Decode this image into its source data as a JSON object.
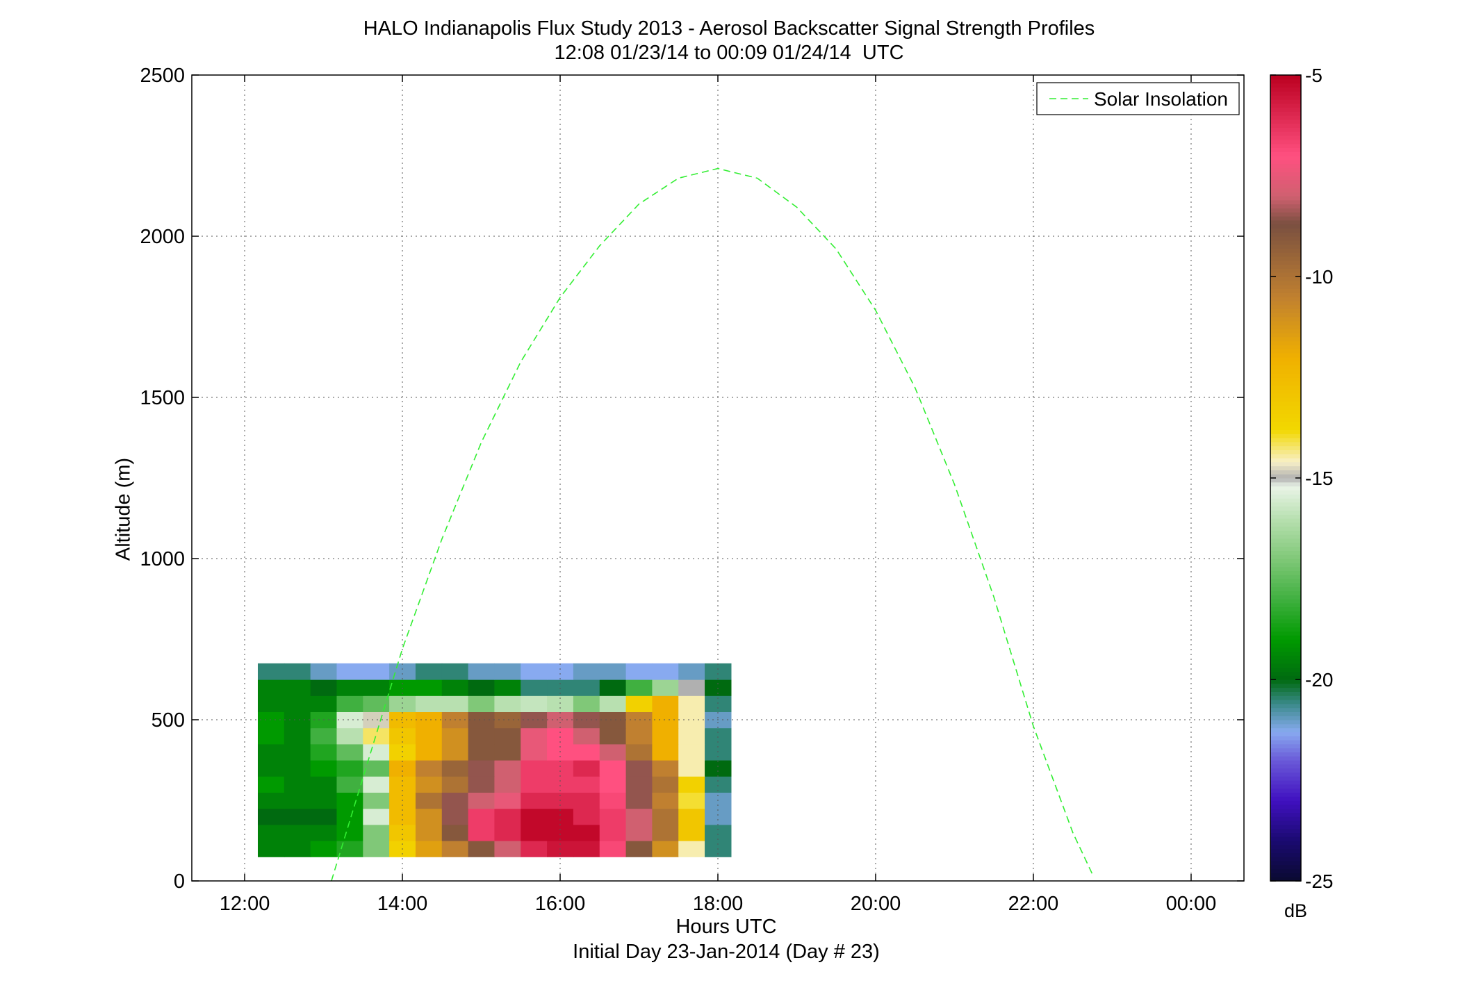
{
  "chart_data": {
    "type": "heatmap",
    "title": [
      "HALO Indianapolis Flux Study 2013 - Aerosol Backscatter Signal Strength Profiles",
      "12:08 01/23/14 to 00:09 01/24/14  UTC"
    ],
    "xlabel": "Hours UTC",
    "xlabel_sub": "Initial Day 23-Jan-2014 (Day # 23)",
    "ylabel": "Altitude (m)",
    "x_ticks": [
      12,
      14,
      16,
      18,
      20,
      22,
      24
    ],
    "x_tick_labels": [
      "12:00",
      "14:00",
      "16:00",
      "18:00",
      "20:00",
      "22:00",
      "00:00"
    ],
    "xlim": [
      11.33,
      24.67
    ],
    "y_ticks": [
      0,
      500,
      1000,
      1500,
      2000,
      2500
    ],
    "y_tick_labels": [
      "0",
      "500",
      "1000",
      "1500",
      "2000",
      "2500"
    ],
    "ylim": [
      0,
      2500
    ],
    "grid": true,
    "legend": {
      "position": "top-right",
      "entries": [
        {
          "name": "Solar Insolation",
          "style": "dashed",
          "color": "#33ee33"
        }
      ]
    },
    "colorbar": {
      "label": "dB",
      "range": [
        -25,
        -5
      ],
      "ticks": [
        -5,
        -10,
        -15,
        -20,
        -25
      ],
      "tick_labels": [
        "-5",
        "-10",
        "-15",
        "-20",
        "-25"
      ],
      "stops": [
        [
          -25,
          "#0a0a30"
        ],
        [
          -24,
          "#1a0a70"
        ],
        [
          -23,
          "#4010c0"
        ],
        [
          -22,
          "#6a5ad8"
        ],
        [
          -21.3,
          "#88aaf0"
        ],
        [
          -20.6,
          "#3a8a8a"
        ],
        [
          -20,
          "#006a10"
        ],
        [
          -19,
          "#009a00"
        ],
        [
          -18,
          "#40b040"
        ],
        [
          -17,
          "#80c878"
        ],
        [
          -16,
          "#b8e0b0"
        ],
        [
          -15.2,
          "#eaf4e8"
        ],
        [
          -15,
          "#b0b0b0"
        ],
        [
          -14.6,
          "#f8f0c8"
        ],
        [
          -13.8,
          "#f2d800"
        ],
        [
          -12,
          "#f0b000"
        ],
        [
          -10.5,
          "#c08030"
        ],
        [
          -8.7,
          "#7a5040"
        ],
        [
          -8,
          "#d06070"
        ],
        [
          -7,
          "#ff5080"
        ],
        [
          -5,
          "#bb0020"
        ]
      ]
    },
    "solar_insolation": {
      "x": [
        13.1,
        13.5,
        14.0,
        14.5,
        15.0,
        15.5,
        16.0,
        16.5,
        17.0,
        17.5,
        18.0,
        18.5,
        19.0,
        19.5,
        20.0,
        20.5,
        21.0,
        21.5,
        22.0,
        22.5,
        22.75
      ],
      "y": [
        0,
        320,
        720,
        1060,
        1360,
        1610,
        1810,
        1970,
        2100,
        2180,
        2210,
        2180,
        2090,
        1960,
        1770,
        1530,
        1230,
        880,
        480,
        150,
        20
      ]
    },
    "x_start": 12.167,
    "bin_hours": 0.3333,
    "alt_start": 75,
    "bin_m": 50,
    "data": [
      [
        -19.5,
        -19.5,
        -19.0,
        -18.5,
        -17.0,
        -13.5,
        -11.5,
        -10.5,
        -9.0,
        -8.0,
        -6.0,
        -5.5,
        -5.5,
        -6.8,
        -9.0,
        -11.0,
        -14.5,
        -20.5
      ],
      [
        -19.5,
        -19.5,
        -19.5,
        -19.0,
        -17.0,
        -13.0,
        -11.0,
        -9.0,
        -6.5,
        -6.0,
        -5.2,
        -5.2,
        -5.2,
        -6.5,
        -8.0,
        -10.0,
        -13.0,
        -20.5
      ],
      [
        -20.0,
        -20.0,
        -20.0,
        -19.0,
        -15.5,
        -12.5,
        -11.0,
        -8.5,
        -6.5,
        -6.0,
        -5.2,
        -5.2,
        -6.0,
        -6.5,
        -8.0,
        -10.0,
        -13.0,
        -21.0
      ],
      [
        -19.5,
        -19.5,
        -19.5,
        -19.0,
        -17.0,
        -12.5,
        -10.0,
        -8.5,
        -8.0,
        -7.5,
        -6.0,
        -6.0,
        -6.0,
        -6.8,
        -8.5,
        -10.5,
        -14.0,
        -21.0
      ],
      [
        -19.0,
        -19.5,
        -19.5,
        -18.0,
        -15.5,
        -12.5,
        -11.0,
        -10.0,
        -8.5,
        -8.0,
        -6.5,
        -6.5,
        -6.5,
        -7.0,
        -8.5,
        -10.0,
        -13.5,
        -20.5
      ],
      [
        -19.5,
        -19.5,
        -19.0,
        -18.5,
        -17.5,
        -12.0,
        -10.5,
        -9.5,
        -8.5,
        -8.0,
        -6.5,
        -6.5,
        -6.0,
        -7.0,
        -8.5,
        -10.5,
        -14.5,
        -20.0
      ],
      [
        -19.5,
        -19.5,
        -18.5,
        -17.5,
        -15.5,
        -13.5,
        -12.0,
        -11.0,
        -9.0,
        -9.0,
        -7.5,
        -7.0,
        -7.0,
        -8.0,
        -10.0,
        -12.0,
        -14.5,
        -20.5
      ],
      [
        -19.0,
        -19.5,
        -18.0,
        -16.0,
        -14.2,
        -13.0,
        -12.0,
        -11.0,
        -9.0,
        -9.0,
        -7.5,
        -7.0,
        -8.0,
        -9.0,
        -10.5,
        -12.0,
        -14.5,
        -20.5
      ],
      [
        -19.0,
        -19.5,
        -18.5,
        -15.5,
        -14.8,
        -12.5,
        -12.0,
        -10.5,
        -9.0,
        -9.5,
        -8.5,
        -8.0,
        -8.5,
        -9.0,
        -10.5,
        -12.0,
        -14.5,
        -21.0
      ],
      [
        -19.5,
        -19.5,
        -19.5,
        -18.0,
        -17.5,
        -16.5,
        -16.0,
        -16.0,
        -17.0,
        -16.0,
        -15.8,
        -16.0,
        -17.0,
        -16.0,
        -13.5,
        -12.0,
        -14.5,
        -20.5
      ],
      [
        -19.5,
        -19.5,
        -20.0,
        -19.5,
        -19.5,
        -19.0,
        -19.0,
        -19.5,
        -20.0,
        -19.5,
        -20.5,
        -20.5,
        -20.5,
        -20.0,
        -18.0,
        -16.5,
        -15.0,
        -20.0
      ],
      [
        -20.5,
        -20.5,
        -21.0,
        -21.3,
        -21.3,
        -21.0,
        -20.5,
        -20.5,
        -21.0,
        -21.0,
        -21.3,
        -21.3,
        -21.0,
        -21.0,
        -21.3,
        -21.3,
        -21.0,
        -20.5
      ]
    ],
    "columns_note": ""
  }
}
